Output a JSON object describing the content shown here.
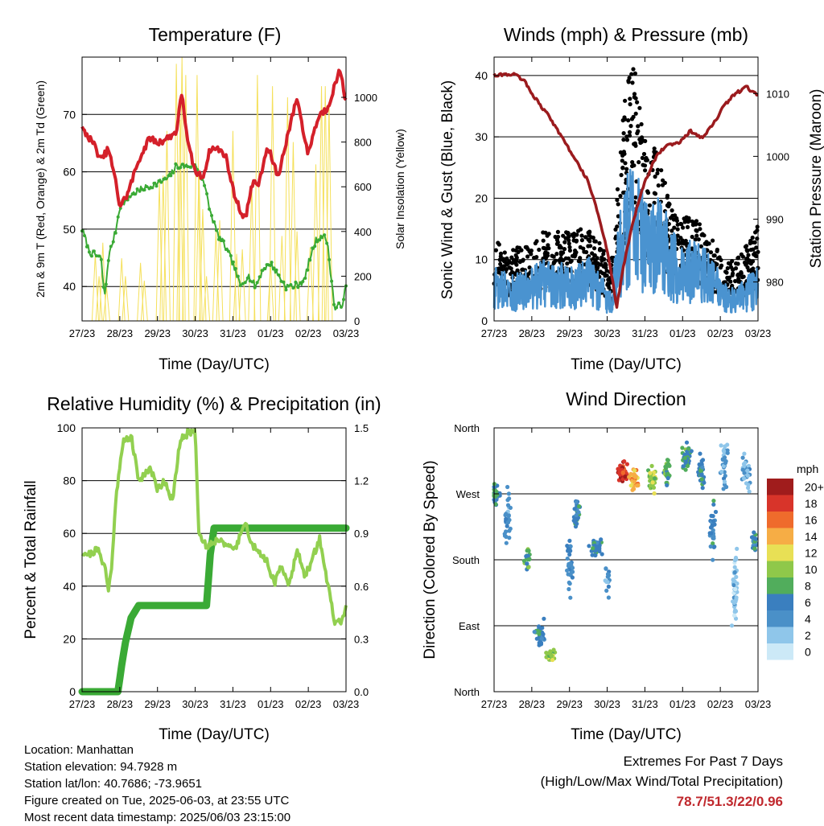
{
  "colors": {
    "temp": "#d4202a",
    "dew": "#3aaa35",
    "solar": "#f5e05a",
    "gust": "#000000",
    "wind": "#4a93d0",
    "pressure": "#9b1b1e",
    "rh": "#92d050",
    "precip": "#3aaa35",
    "extremes": "#c0282d"
  },
  "x_ticks": [
    "27/23",
    "28/23",
    "29/23",
    "30/23",
    "31/23",
    "01/23",
    "02/23",
    "03/23"
  ],
  "chart_data": [
    {
      "id": "temperature",
      "type": "line",
      "title": "Temperature (F)",
      "xlabel": "Time (Day/UTC)",
      "ylabel": "2m & 9m T (Red, Orange) & 2m Td (Green)",
      "y2label": "Solar Insolation (Yellow)",
      "x_range_days": [
        0,
        7
      ],
      "ylim": [
        34,
        80
      ],
      "yticks": [
        "40",
        "50",
        "60",
        "70"
      ],
      "y2lim": [
        0,
        1180
      ],
      "y2ticks": [
        "0",
        "200",
        "400",
        "600",
        "800",
        "1000"
      ],
      "series": [
        {
          "key": "temp",
          "x": [
            0,
            0.3,
            0.5,
            0.7,
            0.9,
            1.0,
            1.2,
            1.5,
            1.8,
            2.0,
            2.3,
            2.5,
            2.65,
            2.8,
            3.0,
            3.2,
            3.4,
            3.6,
            3.8,
            4.0,
            4.2,
            4.35,
            4.5,
            4.7,
            4.9,
            5.0,
            5.2,
            5.4,
            5.7,
            5.9,
            6.0,
            6.1,
            6.3,
            6.5,
            6.75,
            6.85,
            7.0
          ],
          "y": [
            67.5,
            65,
            62,
            64,
            58,
            54,
            56,
            62,
            66,
            65,
            66,
            67,
            74,
            65,
            60,
            59,
            64,
            64,
            63,
            57,
            53,
            52,
            58,
            58,
            64,
            63,
            59,
            65,
            73,
            66,
            63,
            66,
            70,
            71,
            76,
            78,
            72
          ]
        },
        {
          "key": "dew",
          "x": [
            0,
            0.2,
            0.5,
            0.6,
            0.7,
            0.9,
            1.0,
            1.3,
            1.6,
            2.0,
            2.3,
            2.5,
            2.7,
            3.0,
            3.2,
            3.4,
            3.6,
            3.8,
            4.0,
            4.2,
            4.4,
            4.6,
            4.8,
            5.0,
            5.2,
            5.4,
            5.6,
            5.9,
            6.0,
            6.2,
            6.35,
            6.5,
            6.6,
            6.7,
            6.9,
            7.0
          ],
          "y": [
            50,
            46,
            45,
            38,
            45,
            50,
            54,
            56,
            57,
            58,
            59,
            61,
            61,
            61,
            59,
            53,
            49,
            47,
            44,
            40,
            42,
            40,
            43,
            44,
            42,
            40,
            40,
            41,
            44,
            48,
            49,
            48,
            42,
            36,
            37,
            40
          ]
        },
        {
          "key": "solar",
          "spikes_x": [
            0.35,
            0.45,
            0.55,
            0.65,
            1.05,
            1.15,
            1.55,
            1.65,
            2.05,
            2.15,
            2.25,
            2.5,
            2.6,
            2.65,
            2.75,
            3.05,
            3.1,
            3.2,
            3.3,
            3.55,
            3.65,
            4.0,
            4.1,
            4.25,
            4.5,
            4.65,
            5.0,
            5.05,
            5.3,
            5.45,
            5.6,
            5.7,
            6.05,
            6.2,
            6.35,
            6.45,
            6.55
          ],
          "spikes_y": [
            300,
            200,
            350,
            150,
            280,
            200,
            260,
            180,
            620,
            650,
            850,
            1150,
            900,
            1180,
            1100,
            1100,
            680,
            500,
            200,
            400,
            450,
            850,
            300,
            320,
            620,
            1100,
            250,
            1050,
            380,
            1000,
            800,
            400,
            330,
            700,
            1050,
            1050,
            980
          ]
        }
      ]
    },
    {
      "id": "winds",
      "type": "scatter",
      "title": "Winds (mph) & Pressure (mb)",
      "xlabel": "Time (Day/UTC)",
      "ylabel": "Sonic Wind & Gust (Blue, Black)",
      "y2label": "Station Pressure (Maroon)",
      "ylim": [
        0,
        43
      ],
      "yticks": [
        "0",
        "10",
        "20",
        "30",
        "40"
      ],
      "y2lim": [
        973.8,
        1015.8
      ],
      "y2ticks": [
        "980",
        "990",
        "1000",
        "1010"
      ],
      "wind_envelope": {
        "x": [
          0,
          0.5,
          1,
          1.5,
          2,
          2.5,
          2.9,
          3.1,
          3.3,
          3.6,
          3.9,
          4.1,
          4.4,
          4.7,
          5,
          5.3,
          5.6,
          5.9,
          6.1,
          6.5,
          7
        ],
        "y": [
          6,
          5,
          6,
          7,
          6,
          7,
          5,
          3,
          12,
          17,
          15,
          12,
          14,
          10,
          9,
          9,
          8,
          6,
          4,
          4,
          6
        ]
      },
      "gust_envelope": {
        "x": [
          0,
          0.5,
          1,
          1.5,
          2,
          2.5,
          2.9,
          3.1,
          3.3,
          3.5,
          3.7,
          3.9,
          4.1,
          4.3,
          4.5,
          4.7,
          5,
          5.3,
          5.6,
          5.9,
          6.1,
          6.5,
          7
        ],
        "y": [
          10,
          9,
          10,
          12,
          11,
          12,
          9,
          7,
          18,
          30,
          33,
          27,
          20,
          24,
          18,
          14,
          13,
          13,
          12,
          10,
          7,
          8,
          12
        ]
      },
      "pressure": {
        "x": [
          0,
          0.25,
          0.6,
          0.8,
          1.0,
          1.5,
          2.0,
          2.5,
          2.8,
          3.0,
          3.15,
          3.25,
          3.45,
          3.7,
          4.0,
          4.3,
          4.6,
          4.9,
          5.2,
          5.5,
          5.8,
          6.1,
          6.4,
          6.7,
          6.9,
          7.0
        ],
        "y": [
          1013,
          1013,
          1013,
          1012,
          1010,
          1006,
          1001,
          996,
          990,
          985,
          980,
          976,
          983,
          990,
          996,
          1000,
          1002,
          1002,
          1004,
          1003,
          1005,
          1008,
          1010,
          1011,
          1010,
          1010
        ]
      }
    },
    {
      "id": "humidity",
      "type": "line",
      "title": "Relative Humidity (%) & Precipitation (in)",
      "xlabel": "Time (Day/UTC)",
      "ylabel": "Percent & Total Rainfall",
      "ylim": [
        0,
        100
      ],
      "yticks": [
        "0",
        "20",
        "40",
        "60",
        "80",
        "100"
      ],
      "y2ticks": [
        "0.0",
        "0.3",
        "0.6",
        "0.9",
        "1.2",
        "1.5"
      ],
      "series": [
        {
          "key": "rh",
          "x": [
            0,
            0.2,
            0.4,
            0.6,
            0.7,
            0.8,
            0.9,
            1.1,
            1.3,
            1.5,
            1.8,
            2.0,
            2.2,
            2.4,
            2.6,
            2.8,
            3.0,
            3.1,
            3.3,
            3.5,
            3.7,
            3.9,
            4.1,
            4.3,
            4.5,
            4.7,
            4.9,
            5.1,
            5.3,
            5.5,
            5.7,
            5.9,
            6.1,
            6.3,
            6.5,
            6.7,
            6.9,
            7.0
          ],
          "y": [
            53,
            52,
            54,
            48,
            38,
            50,
            75,
            95,
            97,
            80,
            85,
            77,
            80,
            72,
            95,
            98,
            99,
            60,
            55,
            57,
            58,
            54,
            55,
            65,
            56,
            52,
            50,
            41,
            48,
            40,
            55,
            43,
            50,
            58,
            42,
            26,
            27,
            33
          ]
        },
        {
          "key": "precip",
          "x": [
            0,
            0.5,
            0.95,
            1.05,
            1.15,
            1.3,
            1.5,
            2.0,
            2.5,
            3.0,
            3.3,
            3.4,
            3.5,
            4.0,
            5.0,
            6.0,
            7.0
          ],
          "y": [
            0,
            0,
            0,
            0.15,
            0.28,
            0.42,
            0.49,
            0.49,
            0.49,
            0.49,
            0.49,
            0.78,
            0.93,
            0.93,
            0.93,
            0.93,
            0.93
          ]
        }
      ]
    },
    {
      "id": "wind-direction",
      "type": "scatter",
      "title": "Wind Direction",
      "xlabel": "Time (Day/UTC)",
      "ylabel": "Direction (Colored By Speed)",
      "yticks": [
        "North",
        "East",
        "South",
        "West",
        "North"
      ],
      "colorbar": {
        "unit": "mph",
        "labels": [
          "0",
          "2",
          "4",
          "6",
          "8",
          "10",
          "12",
          "14",
          "16",
          "18",
          "20+"
        ],
        "colors": [
          "#cce9f7",
          "#8fc6ea",
          "#4a90c8",
          "#3a7fbf",
          "#51ad5c",
          "#8fc84a",
          "#e8e055",
          "#f6ad45",
          "#ef6b2c",
          "#d8342a",
          "#a01c1c"
        ]
      },
      "clusters": [
        {
          "x": 0.05,
          "dir": 270,
          "spd": 7,
          "n": 25,
          "sx": 0.18,
          "sy": 25
        },
        {
          "x": 0.35,
          "dir": 235,
          "spd": 4,
          "n": 30,
          "sx": 0.12,
          "sy": 60
        },
        {
          "x": 0.9,
          "dir": 180,
          "spd": 8,
          "n": 20,
          "sx": 0.15,
          "sy": 30
        },
        {
          "x": 1.2,
          "dir": 80,
          "spd": 6,
          "n": 30,
          "sx": 0.2,
          "sy": 30
        },
        {
          "x": 1.5,
          "dir": 50,
          "spd": 10,
          "n": 40,
          "sx": 0.15,
          "sy": 12
        },
        {
          "x": 2.0,
          "dir": 170,
          "spd": 5,
          "n": 30,
          "sx": 0.12,
          "sy": 60
        },
        {
          "x": 2.2,
          "dir": 245,
          "spd": 6,
          "n": 25,
          "sx": 0.1,
          "sy": 30
        },
        {
          "x": 2.7,
          "dir": 195,
          "spd": 6,
          "n": 50,
          "sx": 0.2,
          "sy": 18
        },
        {
          "x": 3.0,
          "dir": 150,
          "spd": 4,
          "n": 15,
          "sx": 0.1,
          "sy": 40
        },
        {
          "x": 3.4,
          "dir": 300,
          "spd": 18,
          "n": 60,
          "sx": 0.2,
          "sy": 18
        },
        {
          "x": 3.7,
          "dir": 290,
          "spd": 14,
          "n": 30,
          "sx": 0.15,
          "sy": 20
        },
        {
          "x": 4.2,
          "dir": 290,
          "spd": 10,
          "n": 40,
          "sx": 0.15,
          "sy": 25
        },
        {
          "x": 4.6,
          "dir": 300,
          "spd": 8,
          "n": 30,
          "sx": 0.12,
          "sy": 25
        },
        {
          "x": 5.1,
          "dir": 320,
          "spd": 7,
          "n": 40,
          "sx": 0.2,
          "sy": 25
        },
        {
          "x": 5.5,
          "dir": 300,
          "spd": 6,
          "n": 30,
          "sx": 0.12,
          "sy": 30
        },
        {
          "x": 5.8,
          "dir": 220,
          "spd": 5,
          "n": 30,
          "sx": 0.12,
          "sy": 50
        },
        {
          "x": 6.1,
          "dir": 310,
          "spd": 3,
          "n": 30,
          "sx": 0.12,
          "sy": 45
        },
        {
          "x": 6.4,
          "dir": 140,
          "spd": 2,
          "n": 50,
          "sx": 0.1,
          "sy": 70
        },
        {
          "x": 6.7,
          "dir": 300,
          "spd": 3,
          "n": 30,
          "sx": 0.15,
          "sy": 40
        },
        {
          "x": 6.9,
          "dir": 200,
          "spd": 6,
          "n": 20,
          "sx": 0.08,
          "sy": 25
        }
      ]
    }
  ],
  "footer": {
    "location": "Location: Manhattan",
    "elevation": "Station elevation: 94.7928 m",
    "latlon": "Station lat/lon: 40.7686; -73.9651",
    "created": "Figure created on Tue, 2025-06-03, at 23:55 UTC",
    "timestamp": "Most recent data timestamp: 2025/06/03 23:15:00"
  },
  "extremes": {
    "title": "Extremes For Past 7 Days",
    "subtitle": "(High/Low/Max Wind/Total Precipitation)",
    "values": "78.7/51.3/22/0.96"
  }
}
